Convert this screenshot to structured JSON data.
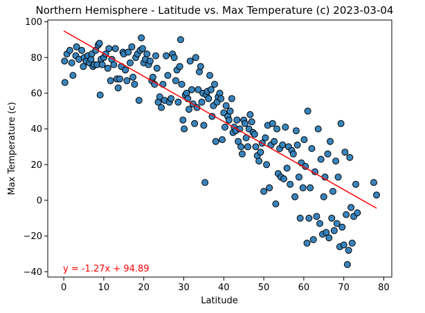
{
  "chart_data": {
    "type": "scatter",
    "title": "Northern Hemisphere - Latitude vs. Max Temperature (c) 2023-03-04",
    "xlabel": "Latitude",
    "ylabel": "Max Temperature (c)",
    "xlim": [
      -4,
      82
    ],
    "ylim": [
      -43,
      101
    ],
    "xticks": [
      0,
      10,
      20,
      30,
      40,
      50,
      60,
      70,
      80
    ],
    "yticks": [
      -40,
      -20,
      0,
      20,
      40,
      60,
      80,
      100
    ],
    "grid": false,
    "colors": {
      "marker_fill": "#2f7db8",
      "marker_edge": "#000000",
      "regression_line": "#ff0000",
      "equation": "#ff0000"
    },
    "regression": {
      "slope": -1.27,
      "intercept": 94.89,
      "x_range": [
        0,
        78.2
      ],
      "equation": "y = -1.27x + 94.89"
    },
    "points": [
      [
        0.3,
        66
      ],
      [
        0.2,
        78
      ],
      [
        0.8,
        82
      ],
      [
        1.5,
        84
      ],
      [
        2,
        77
      ],
      [
        2.3,
        70
      ],
      [
        3,
        81
      ],
      [
        3.2,
        86
      ],
      [
        3.8,
        79
      ],
      [
        4.5,
        84
      ],
      [
        4.9,
        75
      ],
      [
        5.1,
        80
      ],
      [
        5.6,
        78
      ],
      [
        6,
        81
      ],
      [
        6.4,
        77
      ],
      [
        6.8,
        79
      ],
      [
        7,
        82
      ],
      [
        7.3,
        75
      ],
      [
        7.6,
        76
      ],
      [
        8,
        84
      ],
      [
        8.3,
        76
      ],
      [
        8.6,
        87
      ],
      [
        8.9,
        88
      ],
      [
        9.1,
        59
      ],
      [
        9.3,
        79
      ],
      [
        9.6,
        76
      ],
      [
        10,
        80
      ],
      [
        10.5,
        82
      ],
      [
        11,
        74
      ],
      [
        11.3,
        85
      ],
      [
        11.7,
        67
      ],
      [
        12,
        79
      ],
      [
        12.5,
        76
      ],
      [
        12.9,
        85
      ],
      [
        13.3,
        68
      ],
      [
        13.6,
        63
      ],
      [
        14,
        68
      ],
      [
        14.4,
        75
      ],
      [
        14.8,
        83
      ],
      [
        15,
        82
      ],
      [
        15.4,
        73
      ],
      [
        15.8,
        67
      ],
      [
        16.1,
        83
      ],
      [
        16.6,
        77
      ],
      [
        17,
        86
      ],
      [
        17.3,
        69
      ],
      [
        17.7,
        65
      ],
      [
        18,
        80
      ],
      [
        18.4,
        82
      ],
      [
        18.8,
        56
      ],
      [
        19.1,
        84
      ],
      [
        19.4,
        91
      ],
      [
        19.7,
        85
      ],
      [
        20,
        77
      ],
      [
        20.4,
        79
      ],
      [
        20.8,
        82
      ],
      [
        21.2,
        76
      ],
      [
        21.6,
        78
      ],
      [
        22,
        67
      ],
      [
        22.3,
        69
      ],
      [
        22.7,
        65
      ],
      [
        23,
        81
      ],
      [
        23.3,
        74
      ],
      [
        23.6,
        55
      ],
      [
        24,
        58
      ],
      [
        24.4,
        52
      ],
      [
        24.8,
        65
      ],
      [
        25.2,
        56
      ],
      [
        25.6,
        81
      ],
      [
        26,
        70
      ],
      [
        26.4,
        55
      ],
      [
        26.8,
        57
      ],
      [
        27.2,
        82
      ],
      [
        27.6,
        80
      ],
      [
        28,
        67
      ],
      [
        28.3,
        73
      ],
      [
        28.6,
        55
      ],
      [
        29,
        75
      ],
      [
        29.2,
        90
      ],
      [
        29.5,
        65
      ],
      [
        29.8,
        45
      ],
      [
        30.1,
        40
      ],
      [
        30.4,
        59
      ],
      [
        30.7,
        60
      ],
      [
        31,
        57
      ],
      [
        31.3,
        51
      ],
      [
        31.6,
        78
      ],
      [
        32,
        62
      ],
      [
        32.3,
        54
      ],
      [
        32.7,
        43
      ],
      [
        33,
        80
      ],
      [
        33.3,
        52
      ],
      [
        33.6,
        62
      ],
      [
        33.9,
        72
      ],
      [
        34.2,
        75
      ],
      [
        34.5,
        55
      ],
      [
        34.8,
        60
      ],
      [
        35,
        42
      ],
      [
        35.3,
        10
      ],
      [
        35.6,
        59
      ],
      [
        35.9,
        61
      ],
      [
        36.2,
        57
      ],
      [
        36.5,
        70
      ],
      [
        36.8,
        62
      ],
      [
        37.1,
        47
      ],
      [
        37.4,
        53
      ],
      [
        37.7,
        65
      ],
      [
        38,
        33
      ],
      [
        38.3,
        55
      ],
      [
        38.6,
        58
      ],
      [
        39,
        60
      ],
      [
        39.3,
        57
      ],
      [
        39.6,
        34
      ],
      [
        40,
        49
      ],
      [
        40.3,
        41
      ],
      [
        40.6,
        53
      ],
      [
        41,
        47
      ],
      [
        41.3,
        45
      ],
      [
        41.6,
        50
      ],
      [
        42,
        57
      ],
      [
        42.3,
        38
      ],
      [
        42.6,
        41
      ],
      [
        43,
        39
      ],
      [
        43.3,
        45
      ],
      [
        43.6,
        33
      ],
      [
        44,
        40
      ],
      [
        44.3,
        30
      ],
      [
        44.6,
        26
      ],
      [
        45,
        45
      ],
      [
        45.3,
        43
      ],
      [
        45.6,
        35
      ],
      [
        46,
        30
      ],
      [
        46.3,
        40
      ],
      [
        46.6,
        48
      ],
      [
        47,
        44
      ],
      [
        47.3,
        38
      ],
      [
        47.7,
        37
      ],
      [
        48,
        30
      ],
      [
        48.4,
        25
      ],
      [
        48.8,
        22
      ],
      [
        49.2,
        27
      ],
      [
        49.6,
        32
      ],
      [
        50,
        5
      ],
      [
        50.4,
        35
      ],
      [
        50.7,
        20
      ],
      [
        51,
        42
      ],
      [
        51.4,
        7
      ],
      [
        51.8,
        31
      ],
      [
        52.2,
        43
      ],
      [
        52.6,
        33
      ],
      [
        53,
        -2
      ],
      [
        53.3,
        40
      ],
      [
        53.6,
        15
      ],
      [
        54,
        29
      ],
      [
        54.3,
        13
      ],
      [
        54.7,
        31
      ],
      [
        55,
        12
      ],
      [
        55.4,
        41
      ],
      [
        55.8,
        18
      ],
      [
        56.2,
        30
      ],
      [
        56.6,
        9
      ],
      [
        57,
        28
      ],
      [
        57.4,
        26
      ],
      [
        57.8,
        2
      ],
      [
        58.1,
        39
      ],
      [
        58.4,
        31
      ],
      [
        58.8,
        13
      ],
      [
        59.1,
        -10
      ],
      [
        59.4,
        21
      ],
      [
        59.8,
        7
      ],
      [
        60.1,
        34
      ],
      [
        60.4,
        19
      ],
      [
        60.8,
        -24
      ],
      [
        61,
        50
      ],
      [
        61.3,
        -10
      ],
      [
        61.6,
        7
      ],
      [
        62,
        29
      ],
      [
        62.4,
        -22
      ],
      [
        62.8,
        16
      ],
      [
        63.2,
        -9
      ],
      [
        63.6,
        40
      ],
      [
        64,
        -13
      ],
      [
        64.3,
        23
      ],
      [
        64.7,
        -19
      ],
      [
        65,
        2
      ],
      [
        65.3,
        13
      ],
      [
        65.6,
        -18
      ],
      [
        66,
        26
      ],
      [
        66.3,
        -21
      ],
      [
        66.6,
        33
      ],
      [
        67,
        -10
      ],
      [
        67.3,
        5
      ],
      [
        67.6,
        -17
      ],
      [
        68,
        22
      ],
      [
        68.3,
        -13
      ],
      [
        68.6,
        13
      ],
      [
        69,
        -26
      ],
      [
        69.3,
        43
      ],
      [
        69.6,
        -15
      ],
      [
        70,
        -25
      ],
      [
        70.3,
        27
      ],
      [
        70.6,
        -8
      ],
      [
        70.9,
        -36
      ],
      [
        71.2,
        -28
      ],
      [
        71.5,
        24
      ],
      [
        71.8,
        -4
      ],
      [
        72.1,
        -24
      ],
      [
        72.5,
        -9
      ],
      [
        73,
        9
      ],
      [
        73.4,
        -7
      ],
      [
        77.5,
        10
      ],
      [
        78.2,
        3
      ]
    ]
  }
}
